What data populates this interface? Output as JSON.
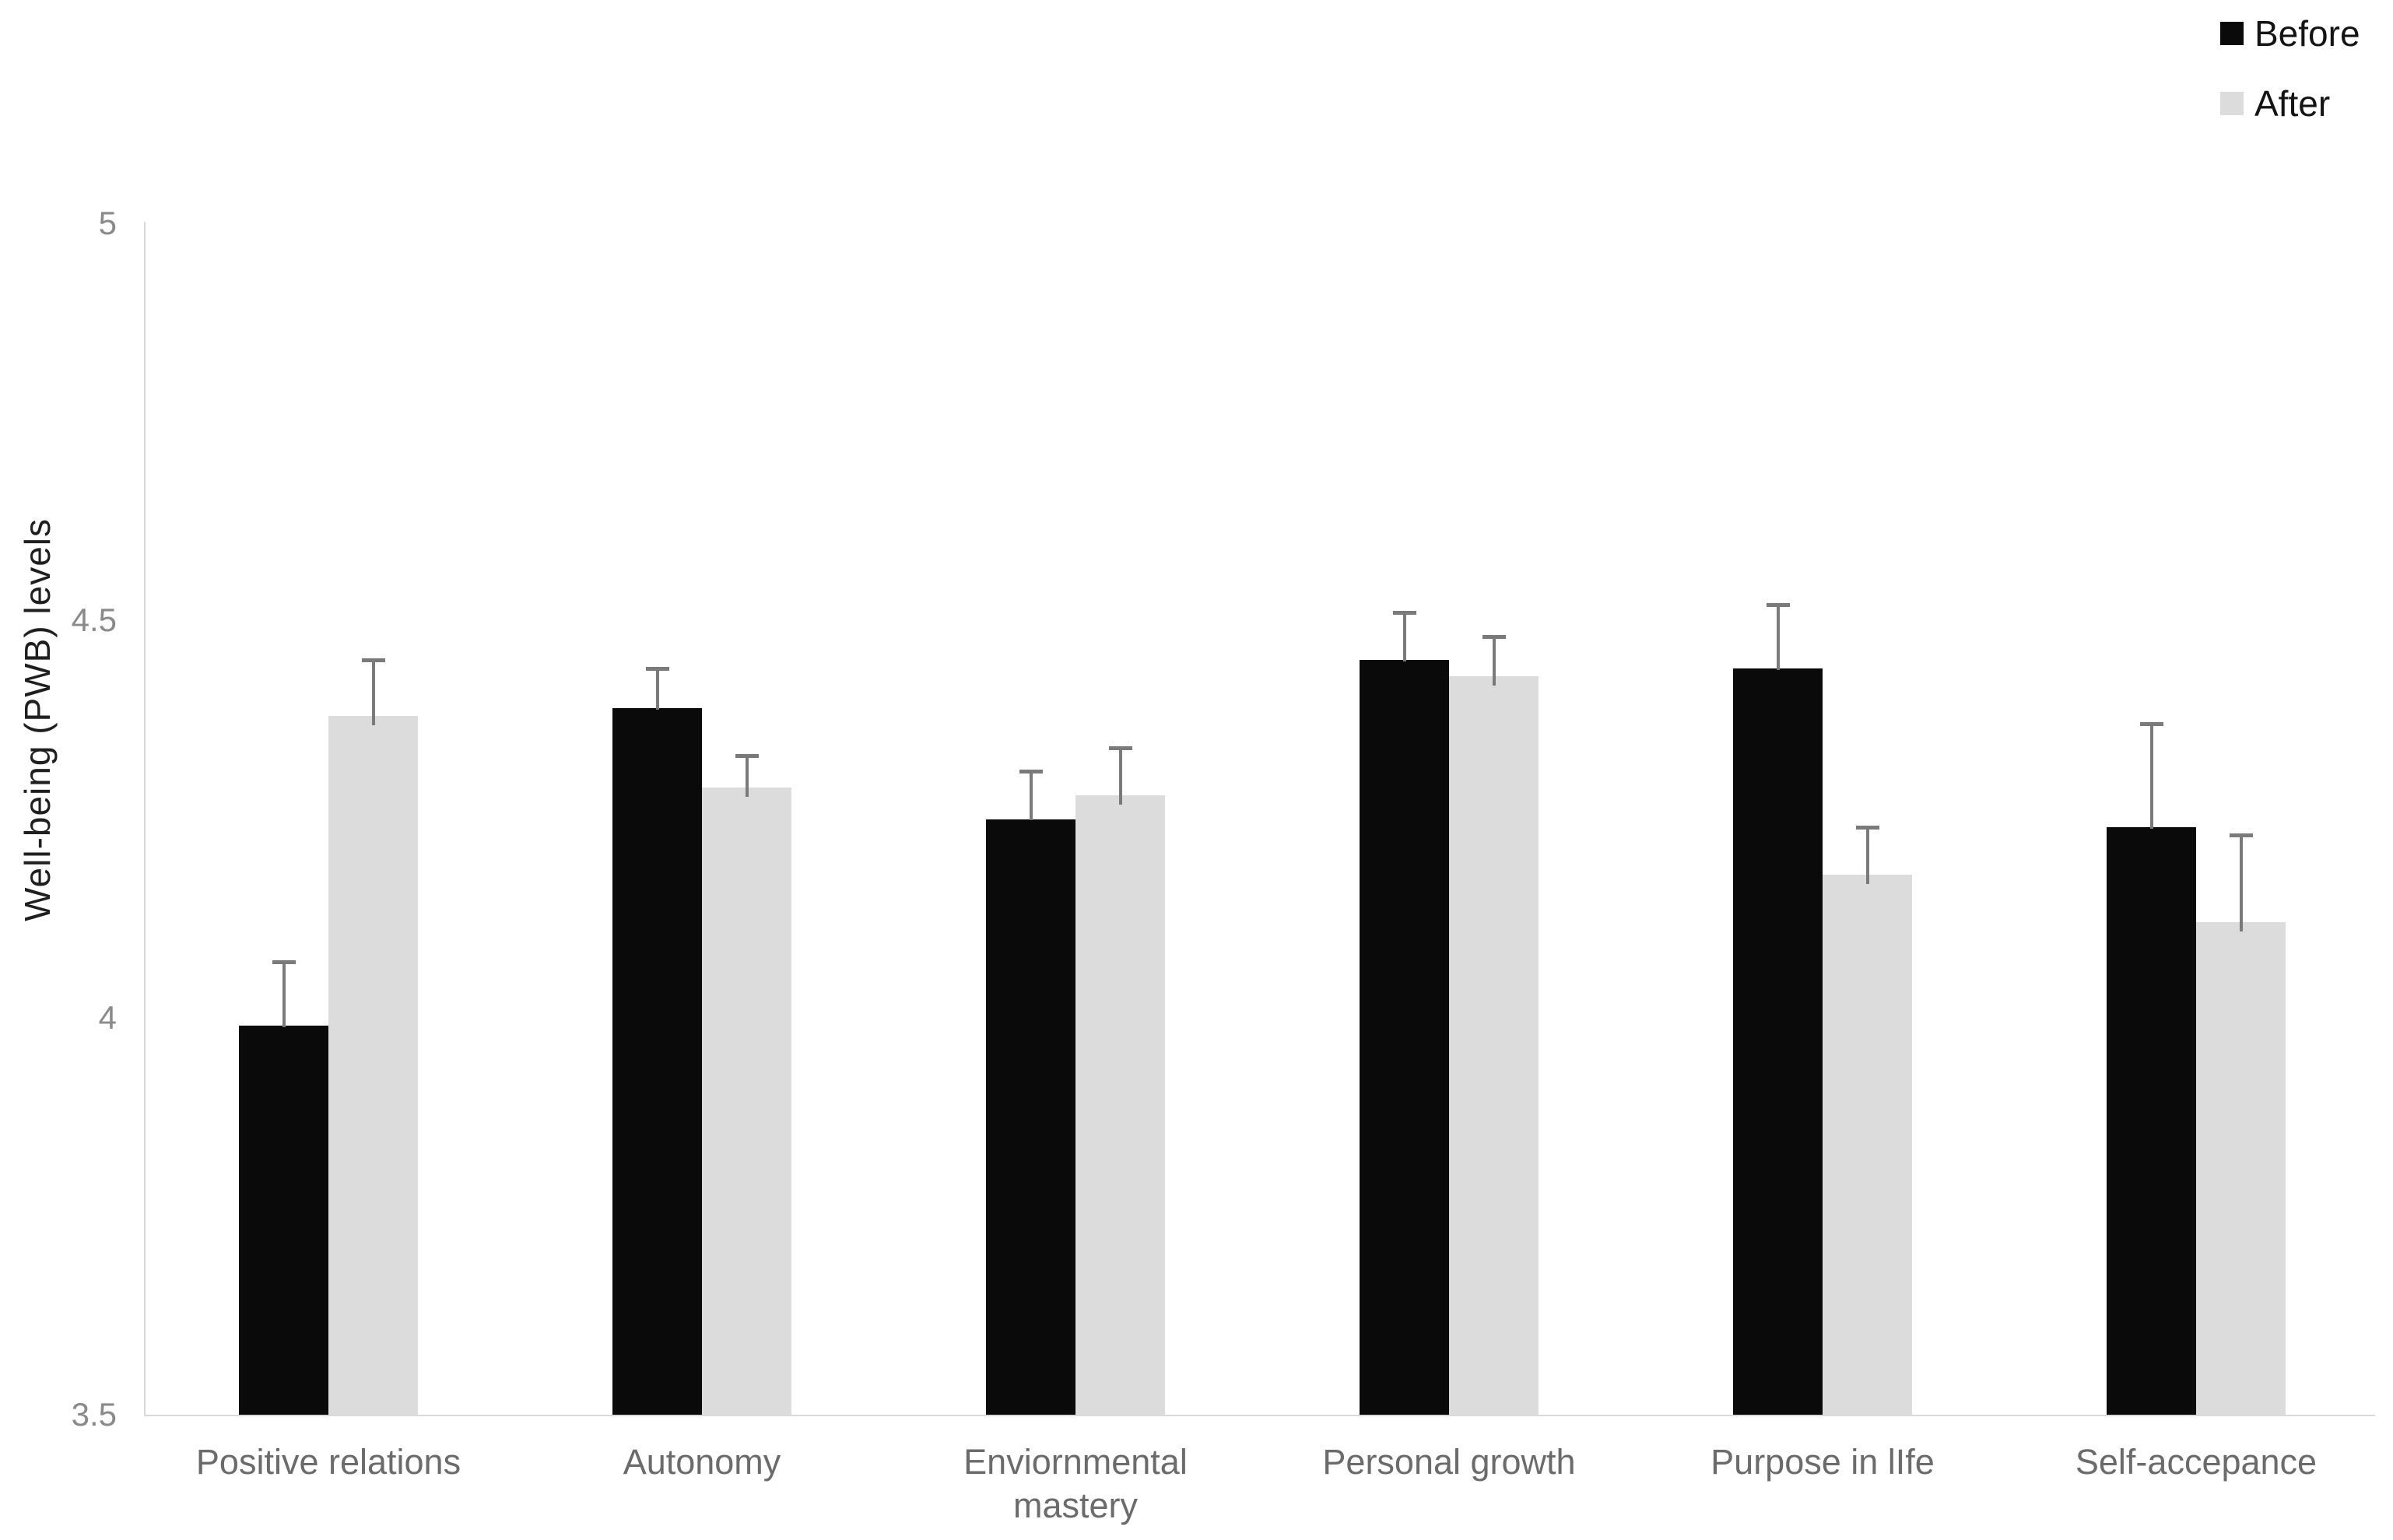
{
  "chart_data": {
    "type": "bar",
    "title": "",
    "ylabel": "Well-being (PWB) levels",
    "xlabel": "",
    "ylim": [
      3.5,
      5
    ],
    "yticks": [
      3.5,
      4,
      4.5,
      5
    ],
    "ytick_labels": [
      "3.5",
      "4",
      "4.5",
      "5"
    ],
    "grid": false,
    "legend_position": "top-right",
    "error_bars": "upper-only",
    "categories": [
      "Positive relations",
      "Autonomy",
      "Enviornmental\nmastery",
      "Personal growth",
      "Purpose in lIfe",
      "Self-accepance"
    ],
    "series": [
      {
        "name": "Before",
        "color": "#0a0a0a",
        "values": [
          3.99,
          4.39,
          4.25,
          4.45,
          4.44,
          4.24
        ],
        "errors_plus": [
          0.08,
          0.05,
          0.06,
          0.06,
          0.08,
          0.13
        ]
      },
      {
        "name": "After",
        "color": "#dcdcdc",
        "values": [
          4.38,
          4.29,
          4.28,
          4.43,
          4.18,
          4.12
        ],
        "errors_plus": [
          0.07,
          0.04,
          0.06,
          0.05,
          0.06,
          0.11
        ]
      }
    ],
    "colors": {
      "error_bar": "#7a7a7a",
      "axis_line": "#d9d9d9",
      "tick_label": "#8a8a8a",
      "category_label": "#6b6b6b",
      "legend_text": "#141414",
      "ylabel_text": "#1f1f1f"
    }
  }
}
